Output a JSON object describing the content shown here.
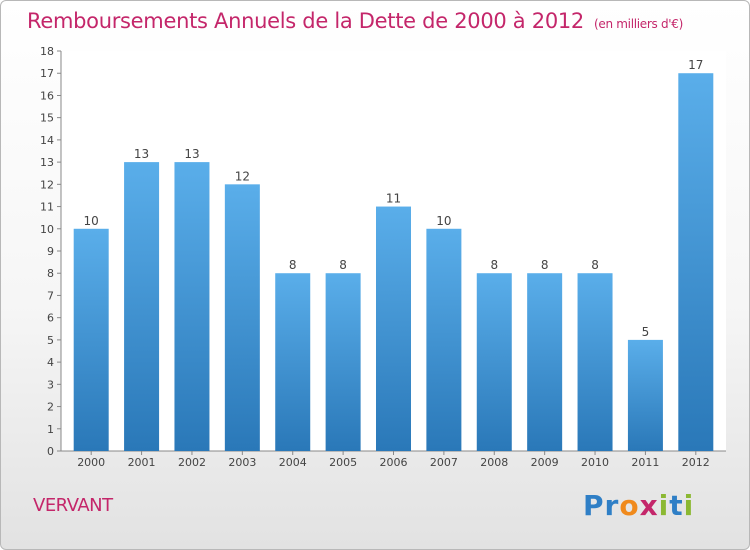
{
  "header": {
    "title": "Remboursements Annuels de la Dette de 2000 à 2012",
    "unit": "(en milliers d'€)"
  },
  "footer": {
    "commune": "VERVANT",
    "logo_letters": [
      "P",
      "r",
      "o",
      "x",
      "i",
      "t",
      "i"
    ]
  },
  "colors": {
    "bar_top": "#5aaeea",
    "bar_bottom": "#2a78b8",
    "title": "#c4266a"
  },
  "chart_data": {
    "type": "bar",
    "title": "Remboursements Annuels de la Dette de 2000 à 2012",
    "subtitle": "(en milliers d'€)",
    "xlabel": "",
    "ylabel": "",
    "categories": [
      "2000",
      "2001",
      "2002",
      "2003",
      "2004",
      "2005",
      "2006",
      "2007",
      "2008",
      "2009",
      "2010",
      "2011",
      "2012"
    ],
    "values": [
      10,
      13,
      13,
      12,
      8,
      8,
      11,
      10,
      8,
      8,
      8,
      5,
      17
    ],
    "data_labels": [
      "10",
      "13",
      "13",
      "12",
      "8",
      "8",
      "11",
      "10",
      "8",
      "8",
      "8",
      "5",
      "17"
    ],
    "ylim": [
      0,
      18
    ],
    "yticks": [
      0,
      1,
      2,
      3,
      4,
      5,
      6,
      7,
      8,
      9,
      10,
      11,
      12,
      13,
      14,
      15,
      16,
      17,
      18
    ],
    "grid": false,
    "legend": "none"
  }
}
